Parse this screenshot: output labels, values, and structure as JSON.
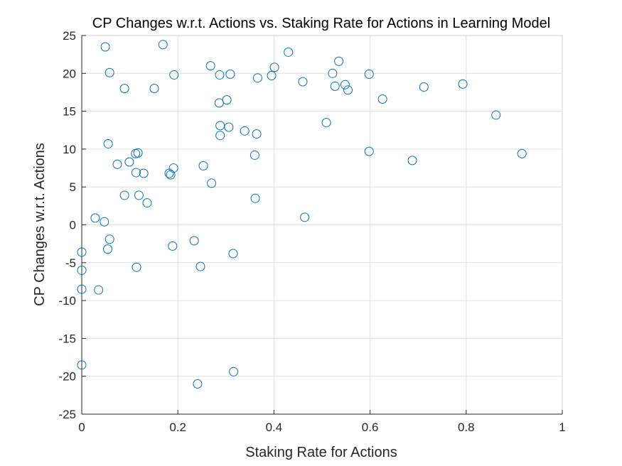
{
  "chart_data": {
    "type": "scatter",
    "title": "CP Changes w.r.t. Actions vs. Staking Rate for Actions in Learning Model",
    "xlabel": "Staking Rate for Actions",
    "ylabel": "CP Changes w.r.t. Actions",
    "xlim": [
      0,
      1
    ],
    "ylim": [
      -25,
      25
    ],
    "xticks": [
      0,
      0.2,
      0.4,
      0.6,
      0.8,
      1
    ],
    "xtick_labels": [
      "0",
      "0.2",
      "0.4",
      "0.6",
      "0.8",
      "1"
    ],
    "yticks": [
      -25,
      -20,
      -15,
      -10,
      -5,
      0,
      5,
      10,
      15,
      20,
      25
    ],
    "ytick_labels": [
      "-25",
      "-20",
      "-15",
      "-10",
      "-5",
      "0",
      "5",
      "10",
      "15",
      "20",
      "25"
    ],
    "grid": true,
    "marker": "circle-open",
    "color": "#0072BD",
    "points": [
      [
        0.049,
        23.5
      ],
      [
        0.169,
        23.8
      ],
      [
        0.268,
        21.0
      ],
      [
        0.43,
        22.8
      ],
      [
        0.535,
        21.6
      ],
      [
        0.058,
        20.1
      ],
      [
        0.192,
        19.8
      ],
      [
        0.287,
        19.8
      ],
      [
        0.309,
        19.9
      ],
      [
        0.366,
        19.4
      ],
      [
        0.395,
        19.7
      ],
      [
        0.401,
        20.8
      ],
      [
        0.522,
        20.0
      ],
      [
        0.598,
        19.9
      ],
      [
        0.089,
        18.0
      ],
      [
        0.151,
        18.0
      ],
      [
        0.46,
        18.9
      ],
      [
        0.527,
        18.3
      ],
      [
        0.548,
        18.5
      ],
      [
        0.554,
        17.8
      ],
      [
        0.712,
        18.2
      ],
      [
        0.793,
        18.6
      ],
      [
        0.302,
        16.5
      ],
      [
        0.286,
        16.1
      ],
      [
        0.626,
        16.6
      ],
      [
        0.862,
        14.5
      ],
      [
        0.509,
        13.5
      ],
      [
        0.288,
        13.1
      ],
      [
        0.306,
        12.9
      ],
      [
        0.339,
        12.4
      ],
      [
        0.364,
        12.0
      ],
      [
        0.288,
        11.8
      ],
      [
        0.055,
        10.7
      ],
      [
        0.112,
        9.4
      ],
      [
        0.117,
        9.5
      ],
      [
        0.36,
        9.2
      ],
      [
        0.598,
        9.7
      ],
      [
        0.916,
        9.4
      ],
      [
        0.688,
        8.5
      ],
      [
        0.074,
        8.0
      ],
      [
        0.099,
        8.3
      ],
      [
        0.253,
        7.8
      ],
      [
        0.191,
        7.5
      ],
      [
        0.113,
        6.9
      ],
      [
        0.129,
        6.8
      ],
      [
        0.182,
        6.8
      ],
      [
        0.185,
        6.6
      ],
      [
        0.27,
        5.5
      ],
      [
        0.089,
        3.9
      ],
      [
        0.119,
        3.9
      ],
      [
        0.136,
        2.9
      ],
      [
        0.361,
        3.5
      ],
      [
        0.464,
        1.0
      ],
      [
        0.028,
        0.9
      ],
      [
        0.047,
        0.4
      ],
      [
        0.058,
        -1.9
      ],
      [
        0.054,
        -3.2
      ],
      [
        0.189,
        -2.8
      ],
      [
        0.234,
        -2.1
      ],
      [
        0.0,
        -3.6
      ],
      [
        0.315,
        -3.8
      ],
      [
        0.0,
        -6.0
      ],
      [
        0.114,
        -5.6
      ],
      [
        0.247,
        -5.5
      ],
      [
        0.0,
        -8.5
      ],
      [
        0.035,
        -8.6
      ],
      [
        0.0,
        -18.5
      ],
      [
        0.316,
        -19.4
      ],
      [
        0.241,
        -21.0
      ]
    ]
  }
}
